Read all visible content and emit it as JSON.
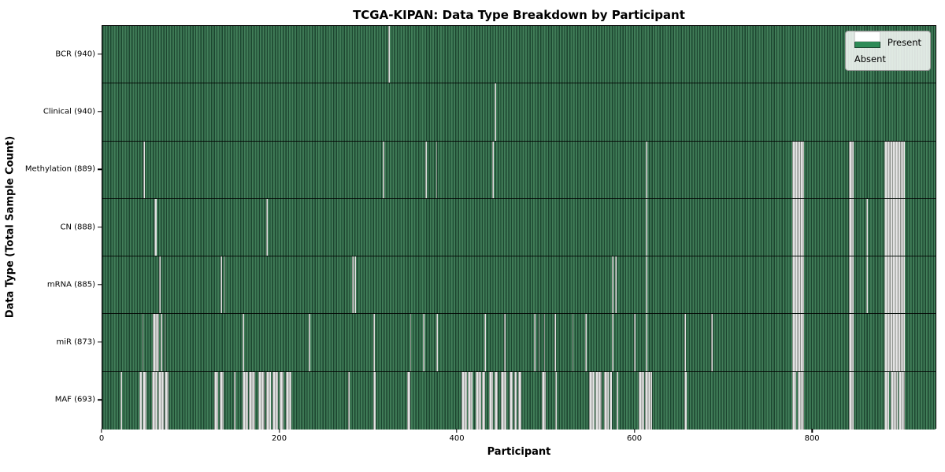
{
  "title": "TCGA-KIPAN: Data Type Breakdown by Participant",
  "xlabel": "Participant",
  "ylabel": "Data Type (Total Sample Count)",
  "legend": {
    "present_label": "Present",
    "absent_label": "Absent"
  },
  "colors": {
    "present_green": "#2e8b57",
    "present_dark_edge": "#1d4630",
    "absent_white": "#ffffff",
    "absent_gray_edge": "#90948f",
    "legend_background": "#fcfdfc",
    "axis_black": "#000000"
  },
  "chart_data": {
    "type": "heatmap",
    "title": "TCGA-KIPAN: Data Type Breakdown by Participant",
    "xlabel": "Participant",
    "ylabel": "Data Type (Total Sample Count)",
    "legend_position": "upper right",
    "legend_entries": [
      "Present",
      "Absent"
    ],
    "grid": false,
    "x_max": 940,
    "x_ticks": [
      0,
      200,
      400,
      600,
      800
    ],
    "rows": [
      {
        "label": "BCR (940)",
        "data_type": "BCR",
        "total_sample_count": 940,
        "absent_ranges": [
          [
            322.5,
            324
          ]
        ]
      },
      {
        "label": "Clinical (940)",
        "data_type": "Clinical",
        "total_sample_count": 940,
        "absent_ranges": [
          [
            442.5,
            444
          ]
        ]
      },
      {
        "label": "Methylation (889)",
        "data_type": "Methylation",
        "total_sample_count": 889,
        "absent_ranges": [
          [
            46,
            48
          ],
          [
            316.5,
            318
          ],
          [
            364.5,
            366
          ],
          [
            376.5,
            378
          ],
          [
            440,
            441.5
          ],
          [
            613,
            614.5
          ],
          [
            778,
            792
          ],
          [
            842,
            848
          ],
          [
            882,
            905
          ]
        ]
      },
      {
        "label": "CN (888)",
        "data_type": "CN",
        "total_sample_count": 888,
        "absent_ranges": [
          [
            59,
            61.5
          ],
          [
            185,
            186.5
          ],
          [
            613,
            614.5
          ],
          [
            778,
            792
          ],
          [
            842,
            848
          ],
          [
            862,
            863.5
          ],
          [
            882,
            905
          ]
        ]
      },
      {
        "label": "mRNA (885)",
        "data_type": "mRNA",
        "total_sample_count": 885,
        "absent_ranges": [
          [
            64,
            66
          ],
          [
            133.5,
            135
          ],
          [
            137.5,
            139
          ],
          [
            281.5,
            283
          ],
          [
            284.5,
            286
          ],
          [
            575,
            576.5
          ],
          [
            578.5,
            580
          ],
          [
            613,
            614.5
          ],
          [
            778,
            792
          ],
          [
            842,
            848
          ],
          [
            862,
            863.5
          ],
          [
            882,
            905
          ]
        ]
      },
      {
        "label": "miR (873)",
        "data_type": "miR",
        "total_sample_count": 873,
        "absent_ranges": [
          [
            45,
            46.5
          ],
          [
            57,
            64
          ],
          [
            66,
            67.5
          ],
          [
            70,
            71.5
          ],
          [
            158,
            159.5
          ],
          [
            233,
            234.5
          ],
          [
            306,
            307.5
          ],
          [
            347,
            348.5
          ],
          [
            362,
            363.5
          ],
          [
            377,
            378.5
          ],
          [
            431,
            432.5
          ],
          [
            453,
            454.5
          ],
          [
            487,
            488.5
          ],
          [
            492,
            493.5
          ],
          [
            498,
            499.5
          ],
          [
            510,
            511.5
          ],
          [
            530,
            531.5
          ],
          [
            545,
            546.5
          ],
          [
            575,
            576.5
          ],
          [
            600,
            601.5
          ],
          [
            613,
            614.5
          ],
          [
            657,
            658.5
          ],
          [
            687,
            688.5
          ],
          [
            778,
            792
          ],
          [
            842,
            848
          ],
          [
            882,
            905
          ]
        ]
      },
      {
        "label": "MAF (693)",
        "data_type": "MAF",
        "total_sample_count": 693,
        "absent_ranges": [
          [
            20,
            22
          ],
          [
            42,
            44
          ],
          [
            45.5,
            50
          ],
          [
            56,
            62
          ],
          [
            63.5,
            69
          ],
          [
            70.5,
            75
          ],
          [
            126,
            131
          ],
          [
            132.5,
            137
          ],
          [
            148,
            150
          ],
          [
            158,
            164
          ],
          [
            165.5,
            172
          ],
          [
            176,
            183
          ],
          [
            184.5,
            190
          ],
          [
            191.5,
            198
          ],
          [
            199.5,
            204
          ],
          [
            207,
            213
          ],
          [
            277,
            279
          ],
          [
            306,
            308
          ],
          [
            344,
            347
          ],
          [
            405,
            411
          ],
          [
            412.5,
            418
          ],
          [
            421,
            427
          ],
          [
            428.5,
            432
          ],
          [
            436,
            441
          ],
          [
            442.5,
            446
          ],
          [
            450,
            456
          ],
          [
            459,
            463
          ],
          [
            464.5,
            467
          ],
          [
            469,
            473
          ],
          [
            496,
            500
          ],
          [
            511,
            513
          ],
          [
            549,
            555
          ],
          [
            556.5,
            563
          ],
          [
            566,
            571
          ],
          [
            572.5,
            575
          ],
          [
            580,
            582
          ],
          [
            605,
            611
          ],
          [
            612.5,
            620
          ],
          [
            657,
            659
          ],
          [
            778,
            783
          ],
          [
            784.5,
            792
          ],
          [
            842,
            848
          ],
          [
            882,
            888
          ],
          [
            889.5,
            897
          ],
          [
            898.5,
            905
          ]
        ]
      }
    ]
  }
}
